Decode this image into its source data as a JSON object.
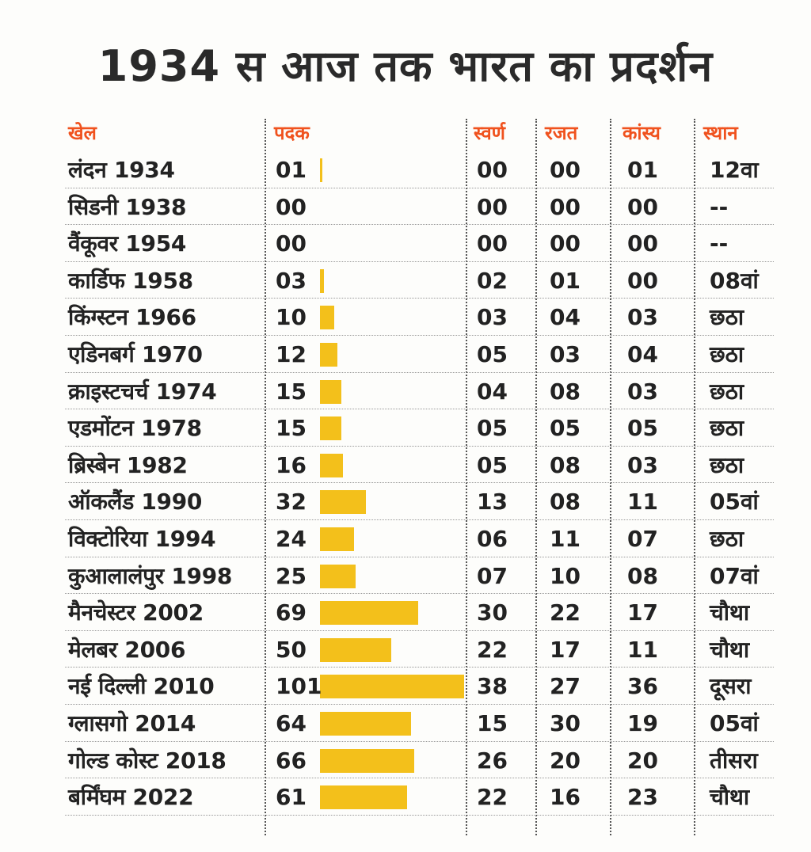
{
  "title": "1934 स आज तक भारत का प्रदर्शन",
  "headers": {
    "games": "खेल",
    "medals": "पदक",
    "gold": "स्वर्ण",
    "silver": "रजत",
    "bronze": "कांस्य",
    "rank": "स्थान"
  },
  "colors": {
    "bar": "#f3c01b",
    "header": "#f0521e",
    "text": "#222222"
  },
  "chart_data": {
    "type": "table",
    "title": "1934 स आज तक भारत का प्रदर्शन",
    "columns": [
      "खेल",
      "पदक",
      "स्वर्ण",
      "रजत",
      "कांस्य",
      "स्थान"
    ],
    "bar_column": "पदक",
    "rows": [
      {
        "games": "लंदन 1934",
        "medals": "01",
        "gold": "00",
        "silver": "00",
        "bronze": "01",
        "rank": "12वा"
      },
      {
        "games": "सिडनी 1938",
        "medals": "00",
        "gold": "00",
        "silver": "00",
        "bronze": "00",
        "rank": "--"
      },
      {
        "games": "वैंकूवर 1954",
        "medals": "00",
        "gold": "00",
        "silver": "00",
        "bronze": "00",
        "rank": "--"
      },
      {
        "games": "कार्डिफ 1958",
        "medals": "03",
        "gold": "02",
        "silver": "01",
        "bronze": "00",
        "rank": "08वां"
      },
      {
        "games": "किंग्स्टन 1966",
        "medals": "10",
        "gold": "03",
        "silver": "04",
        "bronze": "03",
        "rank": "छठा"
      },
      {
        "games": "एडिनबर्ग 1970",
        "medals": "12",
        "gold": "05",
        "silver": "03",
        "bronze": "04",
        "rank": "छठा"
      },
      {
        "games": "क्राइस्टचर्च 1974",
        "medals": "15",
        "gold": "04",
        "silver": "08",
        "bronze": "03",
        "rank": "छठा"
      },
      {
        "games": "एडमोंटन 1978",
        "medals": "15",
        "gold": "05",
        "silver": "05",
        "bronze": "05",
        "rank": "छठा"
      },
      {
        "games": "ब्रिस्बेन 1982",
        "medals": "16",
        "gold": "05",
        "silver": "08",
        "bronze": "03",
        "rank": "छठा"
      },
      {
        "games": "ऑकलैंड 1990",
        "medals": "32",
        "gold": "13",
        "silver": "08",
        "bronze": "11",
        "rank": "05वां"
      },
      {
        "games": "विक्टोरिया 1994",
        "medals": "24",
        "gold": "06",
        "silver": "11",
        "bronze": "07",
        "rank": "छठा"
      },
      {
        "games": "कुआलालंपुर 1998",
        "medals": "25",
        "gold": "07",
        "silver": "10",
        "bronze": "08",
        "rank": "07वां"
      },
      {
        "games": "मैनचेस्टर 2002",
        "medals": "69",
        "gold": "30",
        "silver": "22",
        "bronze": "17",
        "rank": "चौथा"
      },
      {
        "games": "मेलबर 2006",
        "medals": "50",
        "gold": "22",
        "silver": "17",
        "bronze": "11",
        "rank": "चौथा"
      },
      {
        "games": "नई दिल्ली 2010",
        "medals": "101",
        "gold": "38",
        "silver": "27",
        "bronze": "36",
        "rank": "दूसरा"
      },
      {
        "games": "ग्लासगो 2014",
        "medals": "64",
        "gold": "15",
        "silver": "30",
        "bronze": "19",
        "rank": "05वां"
      },
      {
        "games": "गोल्ड कोस्ट 2018",
        "medals": "66",
        "gold": "26",
        "silver": "20",
        "bronze": "20",
        "rank": "तीसरा"
      },
      {
        "games": "बर्मिंघम 2022",
        "medals": "61",
        "gold": "22",
        "silver": "16",
        "bronze": "23",
        "rank": "चौथा"
      }
    ]
  }
}
